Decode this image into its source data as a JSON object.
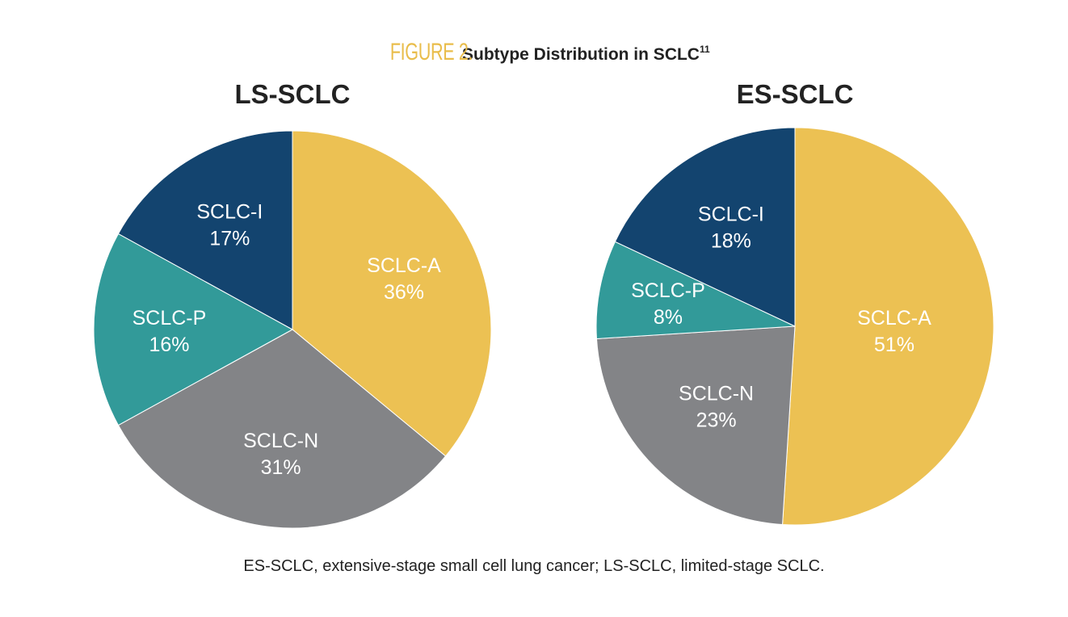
{
  "figure": {
    "label": "FIGURE 2.",
    "title": "Subtype Distribution in SCLC",
    "superscript": "11",
    "footnote": "ES-SCLC, extensive-stage small cell lung cancer; LS-SCLC, limited-stage SCLC."
  },
  "colors": {
    "SCLC-A": "#ecc153",
    "SCLC-N": "#838487",
    "SCLC-P": "#329a99",
    "SCLC-I": "#13446f",
    "accent": "#e9bd4b"
  },
  "chart_data": [
    {
      "type": "pie",
      "title": "LS-SCLC",
      "categories": [
        "SCLC-A",
        "SCLC-N",
        "SCLC-P",
        "SCLC-I"
      ],
      "values": [
        36,
        31,
        16,
        17
      ],
      "labels": [
        "36%",
        "31%",
        "16%",
        "17%"
      ]
    },
    {
      "type": "pie",
      "title": "ES-SCLC",
      "categories": [
        "SCLC-A",
        "SCLC-N",
        "SCLC-P",
        "SCLC-I"
      ],
      "values": [
        51,
        23,
        8,
        18
      ],
      "labels": [
        "51%",
        "23%",
        "8%",
        "18%"
      ]
    }
  ]
}
